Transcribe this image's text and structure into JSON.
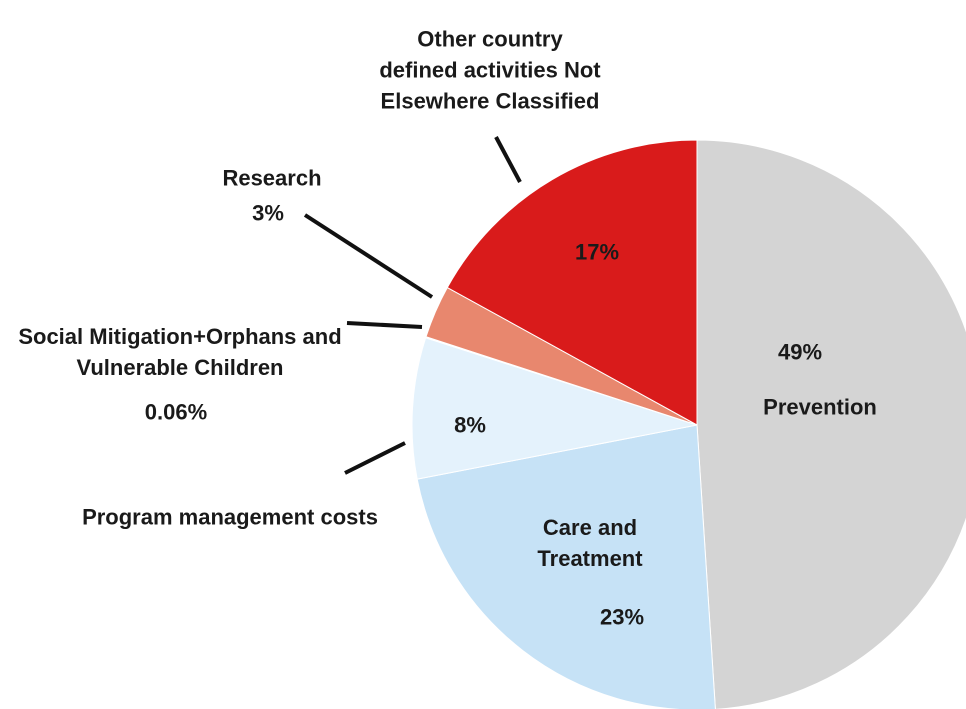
{
  "chart_data": {
    "type": "pie",
    "categories": [
      "Prevention",
      "Care and Treatment",
      "Program management costs",
      "Social Mitigation+Orphans and Vulnerable Children",
      "Research",
      "Other country defined activities Not Elsewhere Classified"
    ],
    "values": [
      49,
      23,
      8,
      0.06,
      3,
      17
    ],
    "value_labels": [
      "49%",
      "23%",
      "8%",
      "0.06%",
      "3%",
      "17%"
    ],
    "colors": [
      "#d4d4d4",
      "#c6e2f6",
      "#e4f2fc",
      "#f2b8a8",
      "#e8876e",
      "#d91b1b"
    ]
  }
}
